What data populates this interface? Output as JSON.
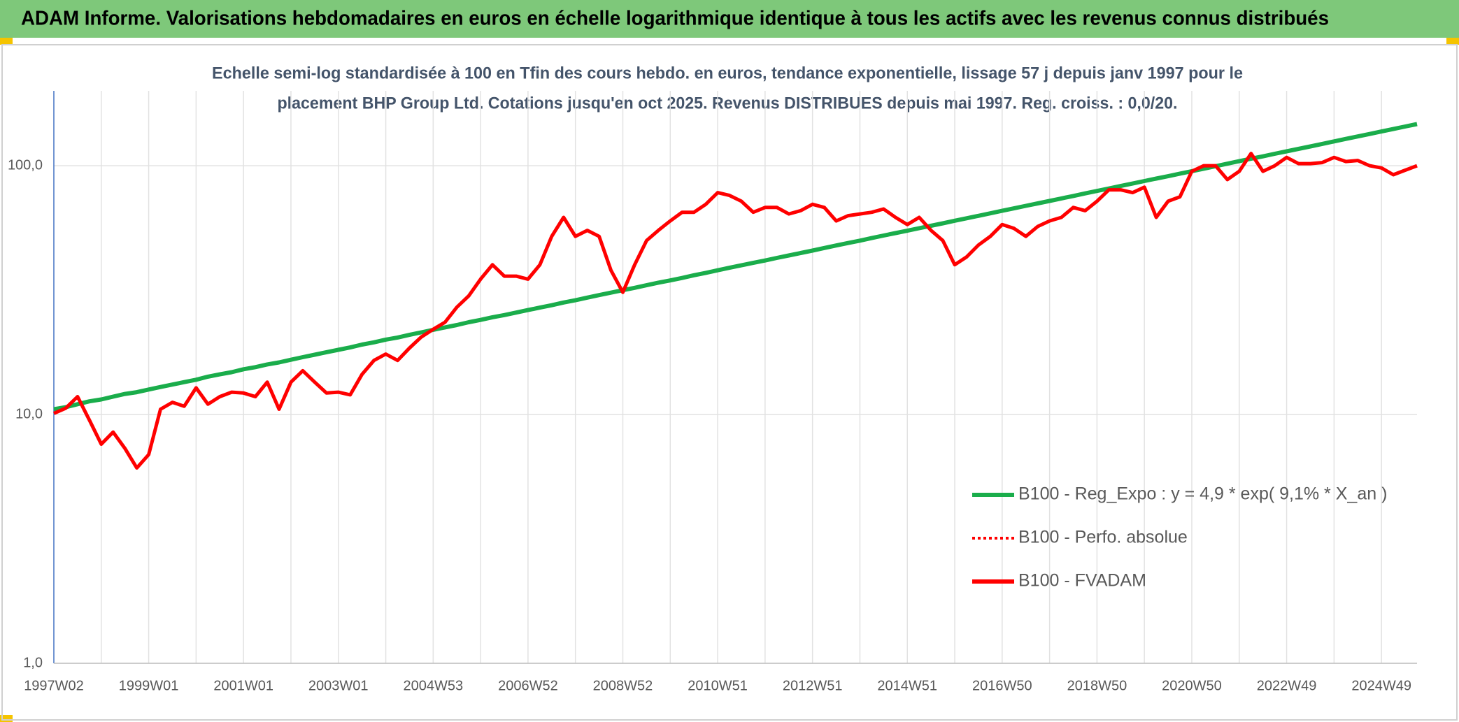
{
  "chart_data": {
    "type": "line",
    "title": "ADAM Informe. Valorisations hebdomadaires en euros en échelle logarithmique identique à tous les actifs avec les revenus connus distribués",
    "subtitle": [
      "Echelle semi-log standardisée à 100 en Tfin des cours hebdo. en euros, tendance exponentielle, lissage 57 j depuis janv 1997 pour le",
      "placement BHP Group Ltd. Cotations jusqu'en oct 2025. Revenus DISTRIBUES depuis mai 1997. Reg. croiss. : 0,0/20."
    ],
    "categories": [
      "1997W02",
      null,
      null,
      null,
      null,
      null,
      null,
      null,
      "1999W01",
      null,
      null,
      null,
      null,
      null,
      null,
      null,
      "2001W01",
      null,
      null,
      null,
      null,
      null,
      null,
      null,
      "2003W01",
      null,
      null,
      null,
      null,
      null,
      null,
      null,
      "2004W53",
      null,
      null,
      null,
      null,
      null,
      null,
      null,
      "2006W52",
      null,
      null,
      null,
      null,
      null,
      null,
      null,
      "2008W52",
      null,
      null,
      null,
      null,
      null,
      null,
      null,
      "2010W51",
      null,
      null,
      null,
      null,
      null,
      null,
      null,
      "2012W51",
      null,
      null,
      null,
      null,
      null,
      null,
      null,
      "2014W51",
      null,
      null,
      null,
      null,
      null,
      null,
      null,
      "2016W50",
      null,
      null,
      null,
      null,
      null,
      null,
      null,
      "2018W50",
      null,
      null,
      null,
      null,
      null,
      null,
      null,
      "2020W50",
      null,
      null,
      null,
      null,
      null,
      null,
      null,
      "2022W49",
      null,
      null,
      null,
      null,
      null,
      null,
      null,
      "2024W49",
      null,
      null,
      null
    ],
    "series": [
      {
        "name": "B100 - Reg_Expo : y = 4,9 * exp( 9,1% *  X_an )",
        "color": "#1aad4b",
        "values": [
          10.5,
          10.7,
          11.0,
          11.3,
          11.5,
          11.8,
          12.1,
          12.3,
          12.6,
          12.9,
          13.2,
          13.5,
          13.8,
          14.2,
          14.5,
          14.8,
          15.2,
          15.5,
          15.9,
          16.2,
          16.6,
          17.0,
          17.4,
          17.8,
          18.2,
          18.6,
          19.1,
          19.5,
          20.0,
          20.4,
          20.9,
          21.4,
          21.9,
          22.4,
          22.9,
          23.5,
          24.0,
          24.6,
          25.1,
          25.7,
          26.3,
          26.9,
          27.5,
          28.2,
          28.8,
          29.5,
          30.2,
          30.9,
          31.6,
          32.3,
          33.1,
          33.9,
          34.6,
          35.4,
          36.3,
          37.1,
          38.0,
          38.9,
          39.8,
          40.7,
          41.6,
          42.6,
          43.6,
          44.6,
          45.6,
          46.7,
          47.8,
          48.9,
          50.0,
          51.2,
          52.4,
          53.6,
          54.8,
          56.1,
          57.4,
          58.7,
          60.1,
          61.5,
          62.9,
          64.4,
          65.9,
          67.4,
          69.0,
          70.6,
          72.2,
          73.9,
          75.6,
          77.4,
          79.2,
          81.0,
          82.9,
          84.8,
          86.8,
          88.8,
          90.8,
          93.0,
          95.1,
          97.3,
          99.6,
          101.9,
          104.3,
          106.7,
          109.1,
          111.7,
          114.3,
          116.9,
          119.6,
          122.4,
          125.3,
          128.2,
          131.2,
          134.2,
          137.3,
          140.5,
          143.8,
          147.1
        ]
      },
      {
        "name": "B100 - Perfo. absolue",
        "color": "#ff0000",
        "dash": "dotted"
      },
      {
        "name": "B100 - FVADAM",
        "color": "#ff0000",
        "values": [
          10.1,
          10.6,
          11.8,
          9.5,
          7.6,
          8.5,
          7.3,
          6.1,
          6.9,
          10.5,
          11.2,
          10.8,
          12.8,
          11.0,
          11.8,
          12.3,
          12.2,
          11.8,
          13.5,
          10.5,
          13.5,
          15,
          13.5,
          12.2,
          12.3,
          12.0,
          14.5,
          16.5,
          17.5,
          16.5,
          18.5,
          20.5,
          22,
          23.5,
          27,
          30,
          35,
          40,
          36,
          36,
          35,
          40,
          52,
          62,
          52,
          55,
          52,
          38,
          31,
          40,
          50,
          55,
          60,
          65,
          65,
          70,
          78,
          76,
          72,
          65,
          68,
          68,
          64,
          66,
          70,
          68,
          60,
          63,
          64,
          65,
          67,
          62,
          58,
          62,
          55,
          50,
          40,
          43,
          48,
          52,
          58,
          56,
          52,
          57,
          60,
          62,
          68,
          66,
          72,
          80,
          80,
          78,
          82,
          62,
          72,
          75,
          95,
          100,
          100,
          88,
          95,
          112,
          95,
          100,
          108,
          102,
          102,
          103,
          108,
          104,
          105,
          100,
          98,
          92,
          96,
          100
        ]
      }
    ],
    "ylim": [
      1,
      200
    ],
    "yticks": [
      {
        "value": 1,
        "label": "1,0"
      },
      {
        "value": 10,
        "label": "10,0"
      },
      {
        "value": 100,
        "label": "100,0"
      }
    ],
    "log_scale": true,
    "grid": true,
    "legend": "lower right"
  }
}
